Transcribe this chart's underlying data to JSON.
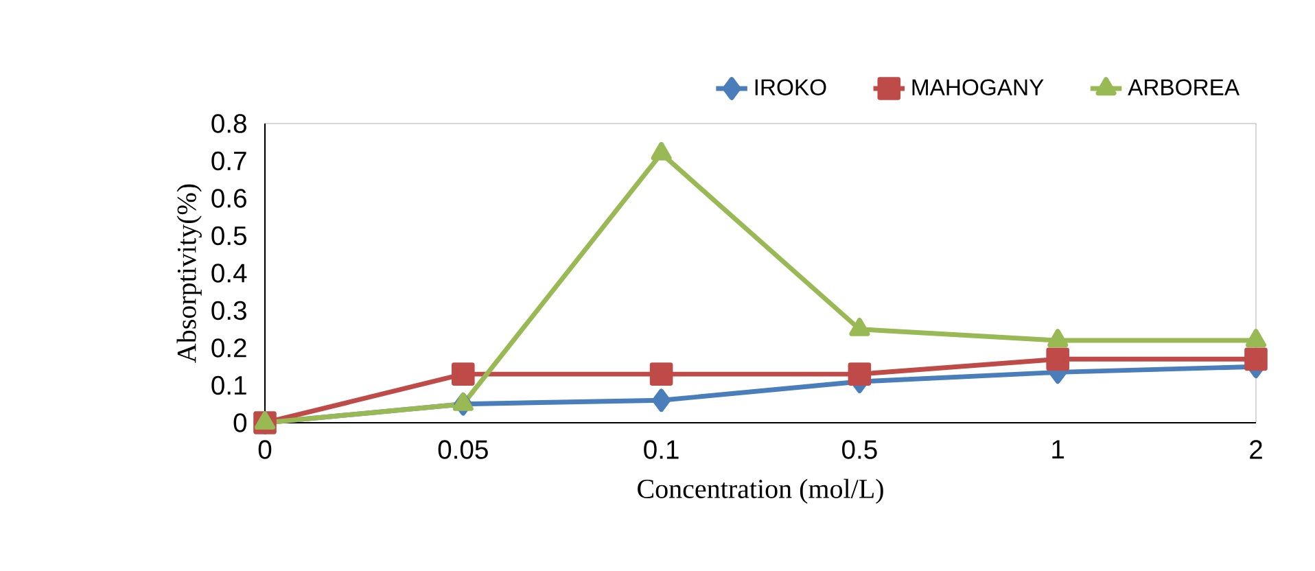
{
  "chart_data": {
    "type": "line",
    "xlabel": "Concentration (mol/L)",
    "ylabel": "Absorptivity(%)",
    "categories": [
      "0",
      "0.05",
      "0.1",
      "0.5",
      "1",
      "2"
    ],
    "series": [
      {
        "name": "IROKO",
        "color": "#4a7ebb",
        "marker": "diamond",
        "values": [
          0,
          0.05,
          0.06,
          0.11,
          0.135,
          0.15
        ]
      },
      {
        "name": "MAHOGANY",
        "color": "#be4b48",
        "marker": "square",
        "values": [
          0,
          0.13,
          0.13,
          0.13,
          0.17,
          0.17
        ]
      },
      {
        "name": "ARBOREA",
        "color": "#98b954",
        "marker": "triangle",
        "values": [
          0,
          0.05,
          0.72,
          0.25,
          0.22,
          0.22
        ]
      }
    ],
    "ylim": [
      0,
      0.8
    ],
    "yticks": [
      0,
      0.1,
      0.2,
      0.3,
      0.4,
      0.5,
      0.6,
      0.7,
      0.8
    ],
    "legend": "top",
    "grid": false,
    "line_style": "solid"
  }
}
